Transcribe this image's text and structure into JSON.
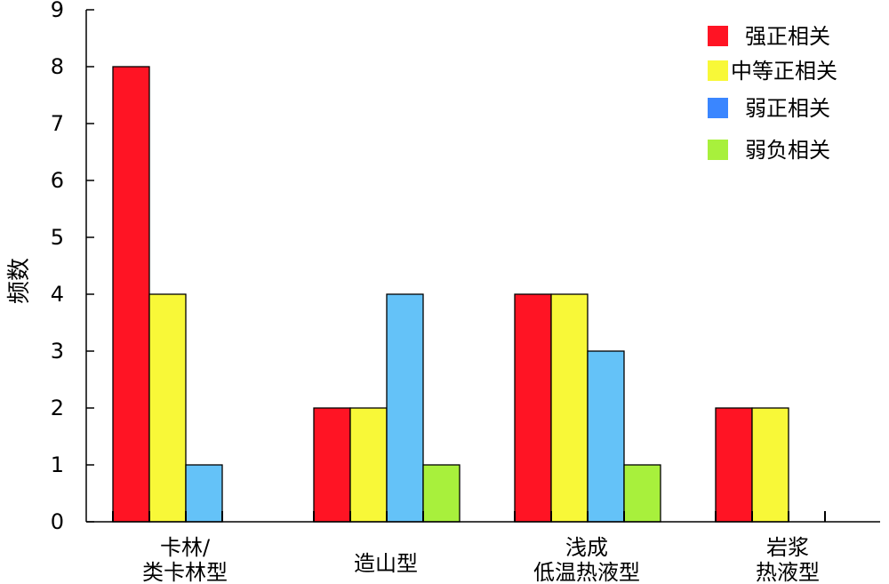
{
  "chart_data": {
    "type": "bar",
    "ylabel": "频数",
    "xlabel": "",
    "title": "",
    "ylim": [
      0,
      9
    ],
    "yticks": [
      0,
      1,
      2,
      3,
      4,
      5,
      6,
      7,
      8,
      9
    ],
    "grid": false,
    "legend_position": "top-right",
    "categories": [
      [
        "卡林/",
        "类卡林型"
      ],
      [
        "造山型"
      ],
      [
        "浅成",
        "低温热液型"
      ],
      [
        "岩浆",
        "热液型"
      ]
    ],
    "series": [
      {
        "name": "强正相关",
        "color": "#ff1424",
        "values": [
          8,
          2,
          4,
          2
        ]
      },
      {
        "name": "中等正相关",
        "color": "#f8f838",
        "values": [
          4,
          2,
          4,
          2
        ]
      },
      {
        "name": "弱正相关",
        "color": "#64c2f8",
        "values": [
          1,
          4,
          3,
          0
        ]
      },
      {
        "name": "弱负相关",
        "color": "#a8f03c",
        "values": [
          0,
          1,
          1,
          0
        ]
      }
    ],
    "legend_swatch_colors": [
      "#ff1424",
      "#f8f838",
      "#3a86ff",
      "#a8f03c"
    ]
  }
}
